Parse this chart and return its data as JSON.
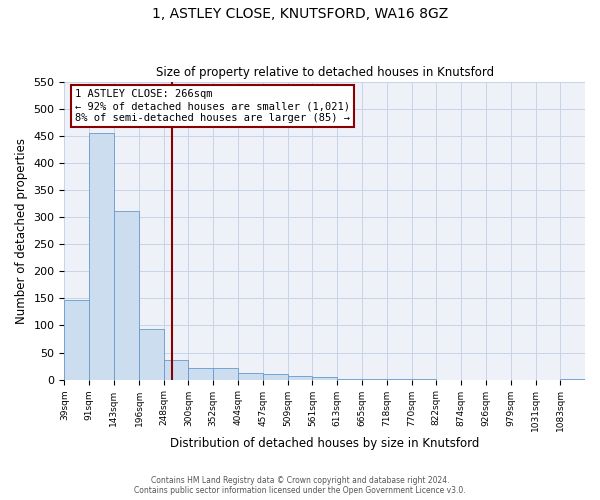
{
  "title": "1, ASTLEY CLOSE, KNUTSFORD, WA16 8GZ",
  "subtitle": "Size of property relative to detached houses in Knutsford",
  "xlabel": "Distribution of detached houses by size in Knutsford",
  "ylabel": "Number of detached properties",
  "bin_edges": [
    39,
    91,
    143,
    196,
    248,
    300,
    352,
    404,
    457,
    509,
    561,
    613,
    665,
    718,
    770,
    822,
    874,
    926,
    979,
    1031,
    1083,
    1135
  ],
  "bar_heights": [
    148,
    455,
    311,
    93,
    37,
    21,
    22,
    13,
    10,
    7,
    5,
    1,
    1,
    1,
    1,
    0,
    0,
    0,
    0,
    0,
    1
  ],
  "bar_color": "#ccddf0",
  "bar_edge_color": "#6699cc",
  "property_size": 266,
  "property_label": "1 ASTLEY CLOSE: 266sqm",
  "annotation_line1": "← 92% of detached houses are smaller (1,021)",
  "annotation_line2": "8% of semi-detached houses are larger (85) →",
  "vline_color": "#880000",
  "annotation_box_edge_color": "#880000",
  "ylim": [
    0,
    550
  ],
  "yticks": [
    0,
    50,
    100,
    150,
    200,
    250,
    300,
    350,
    400,
    450,
    500,
    550
  ],
  "x_tick_labels": [
    "39sqm",
    "91sqm",
    "143sqm",
    "196sqm",
    "248sqm",
    "300sqm",
    "352sqm",
    "404sqm",
    "457sqm",
    "509sqm",
    "561sqm",
    "613sqm",
    "665sqm",
    "718sqm",
    "770sqm",
    "822sqm",
    "874sqm",
    "926sqm",
    "979sqm",
    "1031sqm",
    "1083sqm"
  ],
  "footer_line1": "Contains HM Land Registry data © Crown copyright and database right 2024.",
  "footer_line2": "Contains public sector information licensed under the Open Government Licence v3.0.",
  "grid_color": "#c8d4e8",
  "background_color": "#eef2f8"
}
